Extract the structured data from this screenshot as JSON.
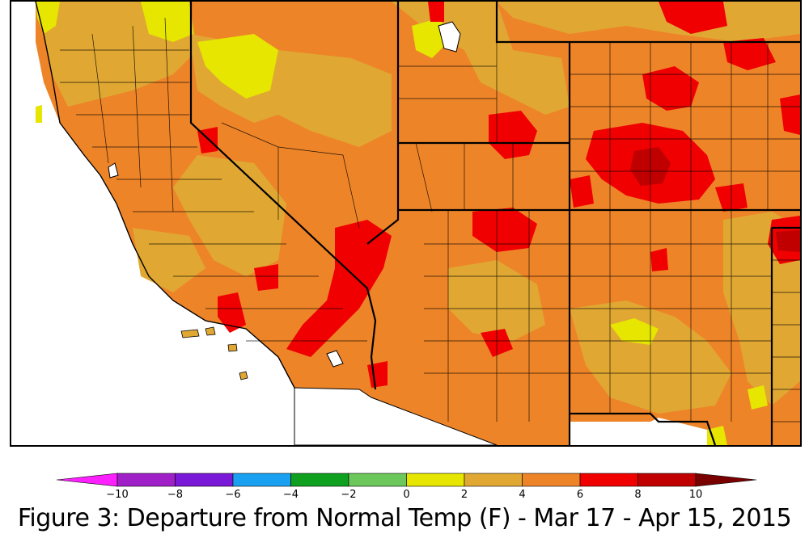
{
  "caption": "Figure 3: Departure from Normal Temp (F) - Mar 17 - Apr 15, 2015",
  "legend": {
    "unit": "F",
    "ticks": [
      "−10",
      "−8",
      "−6",
      "−4",
      "−2",
      "0",
      "2",
      "4",
      "6",
      "8",
      "10"
    ],
    "bins": [
      {
        "from": -10,
        "to": -8,
        "color": "#a020c8"
      },
      {
        "from": -8,
        "to": -6,
        "color": "#7a18d8"
      },
      {
        "from": -6,
        "to": -4,
        "color": "#1aa0f0"
      },
      {
        "from": -4,
        "to": -2,
        "color": "#10a020"
      },
      {
        "from": -2,
        "to": 0,
        "color": "#6cc85a"
      },
      {
        "from": 0,
        "to": 2,
        "color": "#e6e600"
      },
      {
        "from": 2,
        "to": 4,
        "color": "#e0a832"
      },
      {
        "from": 4,
        "to": 6,
        "color": "#ee8428"
      },
      {
        "from": 6,
        "to": 8,
        "color": "#f00000"
      },
      {
        "from": 8,
        "to": 10,
        "color": "#c00000"
      }
    ],
    "below_color": "#ff20ff",
    "above_color": "#7a0000"
  },
  "map": {
    "ocean_color": "#ffffff",
    "base_color": "#ee8428"
  }
}
